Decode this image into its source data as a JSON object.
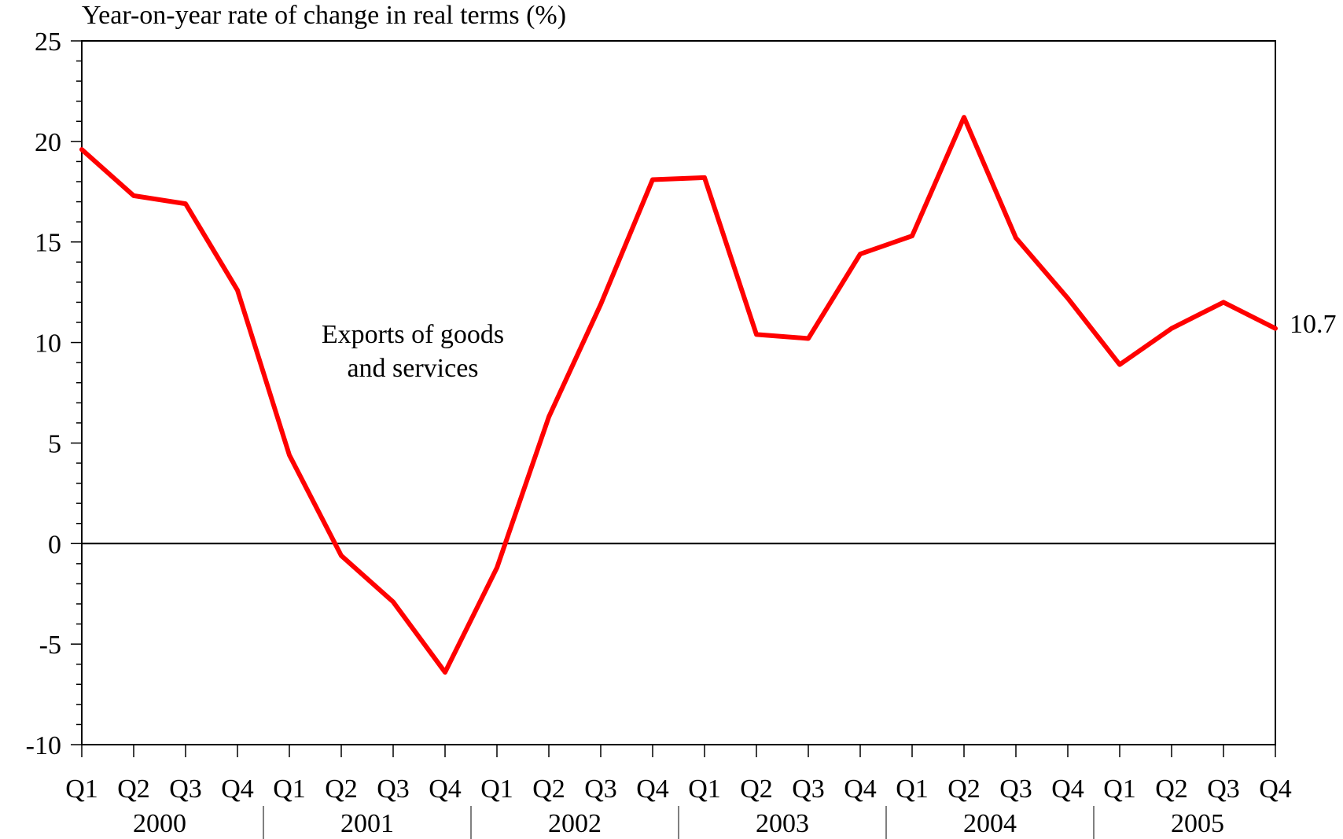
{
  "chart_data": {
    "type": "line",
    "ylabel": "Year-on-year rate of change in real terms (%)",
    "xlabel": "",
    "ylim": [
      -10,
      25
    ],
    "yticks": [
      25,
      20,
      15,
      10,
      5,
      0,
      -5,
      -10
    ],
    "ytick_labels": [
      "25",
      "20",
      "15",
      "10",
      "5",
      "0",
      "-5",
      "-10"
    ],
    "quarter_labels": [
      "Q1",
      "Q2",
      "Q3",
      "Q4",
      "Q1",
      "Q2",
      "Q3",
      "Q4",
      "Q1",
      "Q2",
      "Q3",
      "Q4",
      "Q1",
      "Q2",
      "Q3",
      "Q4",
      "Q1",
      "Q2",
      "Q3",
      "Q4",
      "Q1",
      "Q2",
      "Q3",
      "Q4"
    ],
    "year_labels": [
      "2000",
      "2001",
      "2002",
      "2003",
      "2004",
      "2005"
    ],
    "series": [
      {
        "name": "Exports of goods and services",
        "color": "#ff0000",
        "values": [
          19.6,
          17.3,
          16.9,
          12.6,
          4.4,
          -0.6,
          -2.9,
          -6.4,
          -1.2,
          6.3,
          11.9,
          18.1,
          18.2,
          10.4,
          10.2,
          14.4,
          15.3,
          21.2,
          15.2,
          12.2,
          8.9,
          10.7,
          12.0,
          10.7
        ]
      }
    ],
    "annotations": {
      "series_label_line1": "Exports of goods",
      "series_label_line2": "and services",
      "end_value": "10.7"
    },
    "grid": false,
    "legend": "none"
  }
}
